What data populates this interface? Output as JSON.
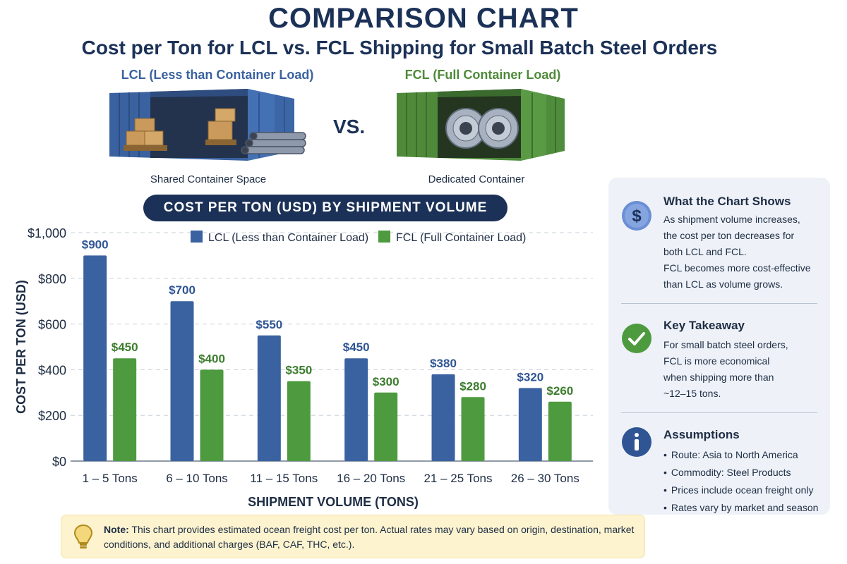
{
  "header": {
    "title": "COMPARISON CHART",
    "subtitle": "Cost per Ton for LCL vs. FCL Shipping for Small Batch Steel Orders"
  },
  "containers": {
    "lcl": {
      "label_main": "LCL",
      "label_paren": "(Less than Container Load)",
      "caption": "Shared Container Space",
      "color": "#3a62a0"
    },
    "vs_label": "VS.",
    "fcl": {
      "label_main": "FCL",
      "label_paren": "(Full Container Load)",
      "caption": "Dedicated Container",
      "color": "#4e8a3a"
    }
  },
  "chart_banner": "COST PER TON (USD) BY SHIPMENT VOLUME",
  "chart_data": {
    "type": "bar",
    "title": "COST PER TON (USD) BY SHIPMENT VOLUME",
    "xlabel": "SHIPMENT VOLUME (TONS)",
    "ylabel": "COST PER TON (USD)",
    "ylim": [
      0,
      1000
    ],
    "yticks": [
      0,
      200,
      400,
      600,
      800,
      1000
    ],
    "ytick_labels": [
      "$0",
      "$200",
      "$400",
      "$600",
      "$800",
      "$1,000"
    ],
    "categories": [
      "1 – 5 Tons",
      "6 – 10 Tons",
      "11 – 15 Tons",
      "16 – 20 Tons",
      "21 – 25 Tons",
      "26 – 30 Tons"
    ],
    "series": [
      {
        "name": "LCL (Less than Container Load)",
        "color": "#3a62a0",
        "label_color": "#2f5594",
        "values": [
          900,
          700,
          550,
          450,
          380,
          320
        ],
        "labels": [
          "$900",
          "$700",
          "$550",
          "$450",
          "$380",
          "$320"
        ]
      },
      {
        "name": "FCL (Full Container Load)",
        "color": "#4e9a3f",
        "label_color": "#3c7d2e",
        "values": [
          450,
          400,
          350,
          300,
          280,
          260
        ],
        "labels": [
          "$450",
          "$400",
          "$350",
          "$300",
          "$280",
          "$260"
        ]
      }
    ],
    "legend": "top",
    "grid": "dashed horizontal"
  },
  "side_panel": {
    "chart_shows": {
      "icon": "dollar-icon",
      "heading": "What the Chart Shows",
      "lines": [
        "As shipment volume increases,",
        "the cost per ton decreases for",
        "both LCL and FCL.",
        "FCL becomes more cost-effective",
        "than LCL as volume grows."
      ]
    },
    "takeaway": {
      "icon": "check-icon",
      "heading": "Key Takeaway",
      "lines": [
        "For small batch steel orders,",
        "FCL is more economical",
        "when shipping more than",
        "~12–15 tons."
      ]
    },
    "assumptions": {
      "icon": "info-icon",
      "heading": "Assumptions",
      "items": [
        "Route: Asia to North America",
        "Commodity: Steel Products",
        "Prices include ocean freight only",
        "Rates vary by market and season"
      ]
    }
  },
  "note": {
    "icon": "lightbulb-icon",
    "label": "Note:",
    "text": " This chart provides estimated ocean freight cost per ton. Actual rates may vary based on origin, destination, market conditions, and additional charges (BAF, CAF, THC, etc.)."
  }
}
